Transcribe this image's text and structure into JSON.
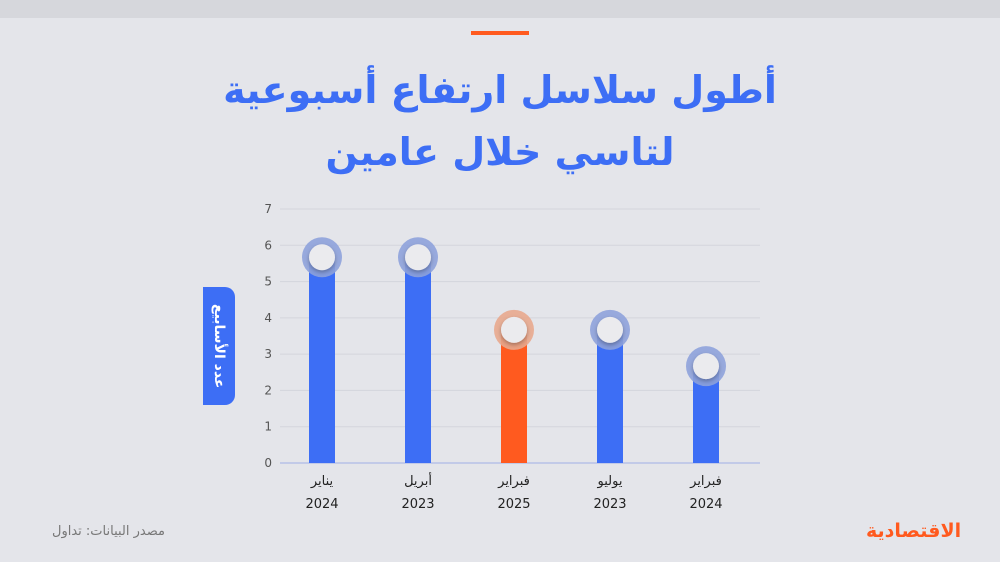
{
  "title_lines": [
    "أطول سلاسل ارتفاع أسبوعية",
    "لتاسي خلال عامين"
  ],
  "source": "مصدر البيانات: تداول",
  "logo": "الاقتصادية",
  "colors": {
    "blue": "#3d6ef5",
    "orange": "#ff5a1f"
  },
  "chart_data": {
    "type": "bar",
    "title": "أطول سلاسل ارتفاع أسبوعية لتاسي خلال عامين",
    "ylabel": "عدد الأسابيع",
    "xlabel": "",
    "ylim": [
      0,
      7
    ],
    "yticks": [
      "0",
      "1",
      "2",
      "3",
      "4",
      "5",
      "6",
      "7"
    ],
    "grid": true,
    "categories": [
      {
        "month": "يناير",
        "year": "2024"
      },
      {
        "month": "أبريل",
        "year": "2023"
      },
      {
        "month": "فبراير",
        "year": "2025"
      },
      {
        "month": "يوليو",
        "year": "2023"
      },
      {
        "month": "فبراير",
        "year": "2024"
      }
    ],
    "values": [
      6,
      6,
      4,
      4,
      3
    ],
    "highlight": [
      false,
      false,
      true,
      false,
      false
    ]
  }
}
